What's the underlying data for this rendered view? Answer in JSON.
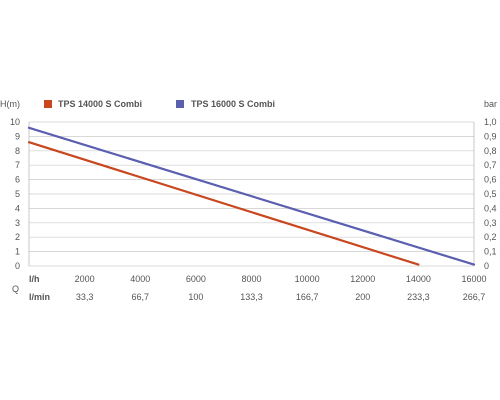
{
  "chart_data": {
    "type": "line",
    "y_left_label": "H(m)",
    "y_right_label": "bar",
    "x_row1_label": "l/h",
    "x_row2_label": "l/min",
    "x_axis_symbol": "Q",
    "x_ticks_lh": [
      "2000",
      "4000",
      "6000",
      "8000",
      "10000",
      "12000",
      "14000",
      "16000"
    ],
    "x_ticks_lmin": [
      "33,3",
      "66,7",
      "100",
      "133,3",
      "166,7",
      "200",
      "233,3",
      "266,7"
    ],
    "y_ticks_left": [
      "0",
      "1",
      "2",
      "3",
      "4",
      "5",
      "6",
      "7",
      "8",
      "9",
      "10"
    ],
    "y_ticks_right": [
      "0",
      "0,1",
      "0,2",
      "0,3",
      "0,4",
      "0,5",
      "0,6",
      "0,7",
      "0,8",
      "0,9",
      "1,0"
    ],
    "xlim": [
      0,
      16000
    ],
    "ylim": [
      0,
      10
    ],
    "grid": "horizontal",
    "legend_position": "top",
    "series": [
      {
        "name": "TPS 14000 S Combi",
        "color": "#c8471f",
        "x": [
          0,
          14000
        ],
        "y": [
          8.6,
          0.1
        ]
      },
      {
        "name": "TPS 16000 S Combi",
        "color": "#5b5fb0",
        "x": [
          0,
          16000
        ],
        "y": [
          9.6,
          0.1
        ]
      }
    ]
  }
}
